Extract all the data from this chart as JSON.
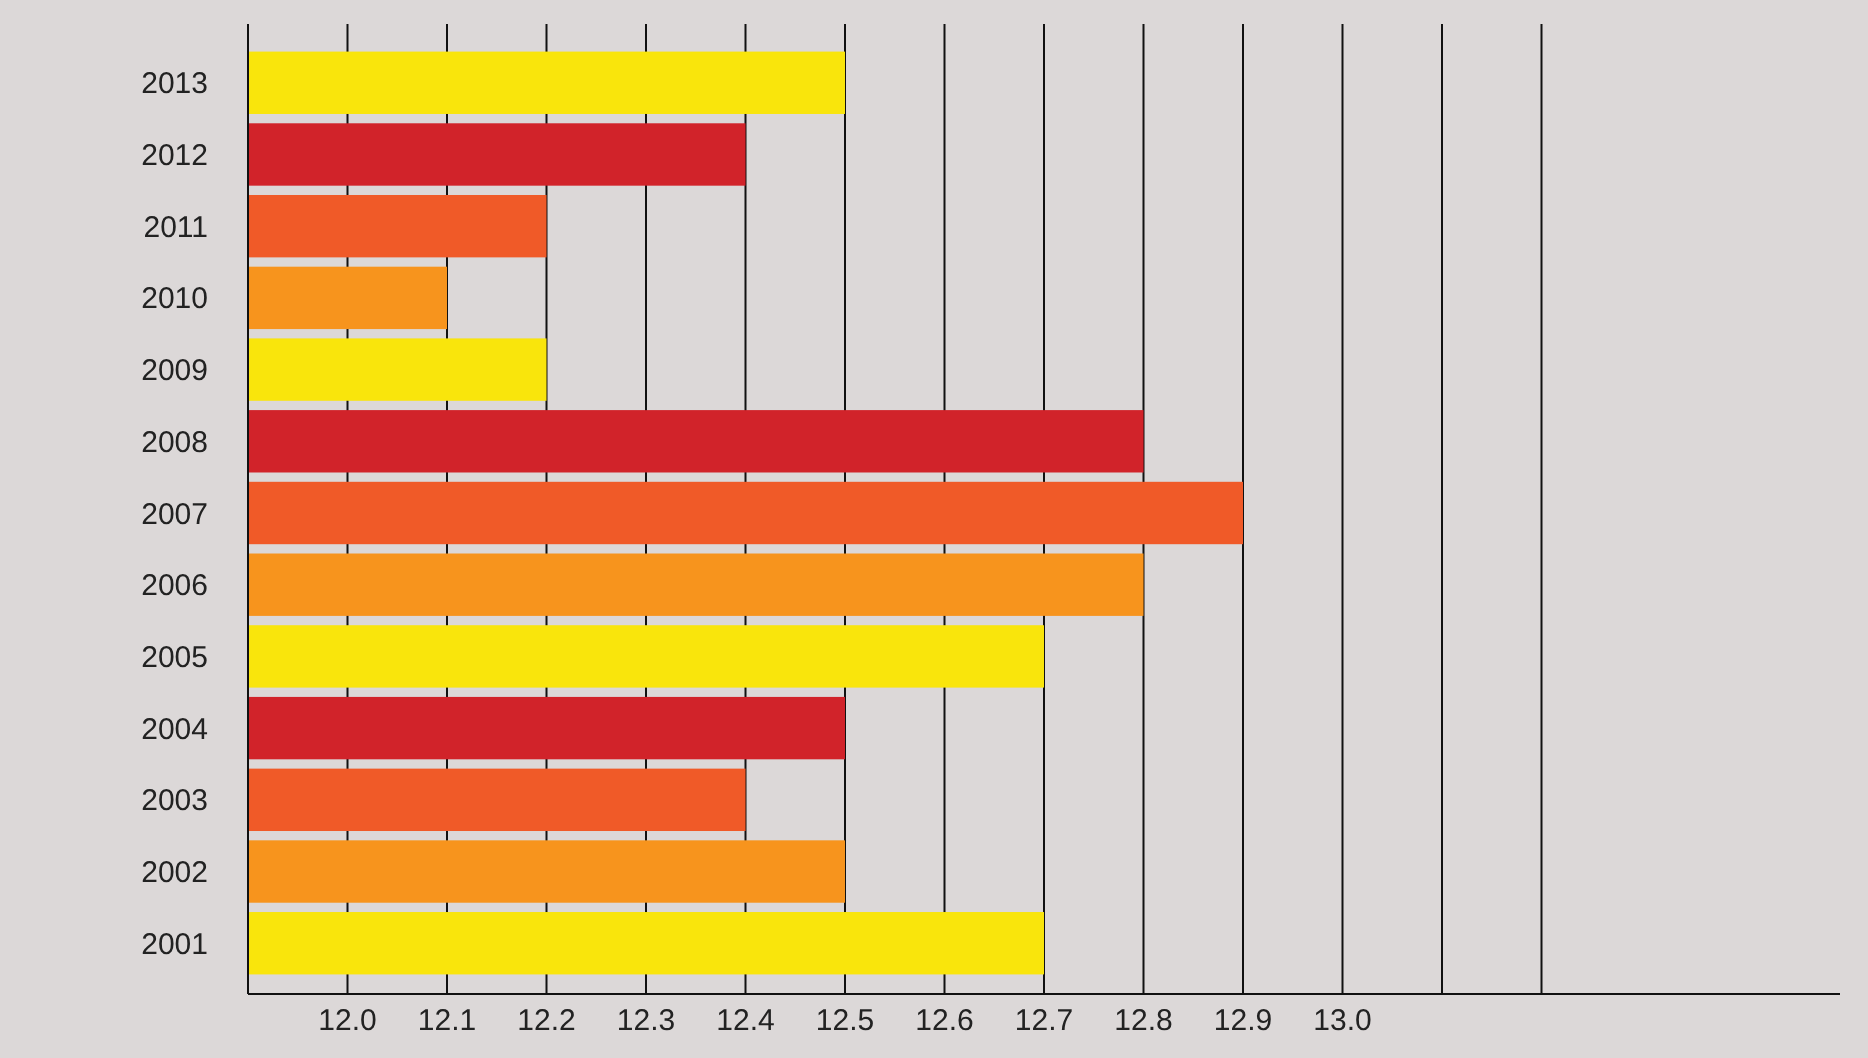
{
  "chart_data": {
    "type": "bar",
    "orientation": "horizontal",
    "categories": [
      "2013",
      "2012",
      "2011",
      "2010",
      "2009",
      "2008",
      "2007",
      "2006",
      "2005",
      "2004",
      "2003",
      "2002",
      "2001"
    ],
    "values": [
      12.5,
      12.4,
      12.2,
      12.1,
      12.2,
      12.8,
      12.9,
      12.8,
      12.7,
      12.5,
      12.4,
      12.5,
      12.7
    ],
    "colors": [
      "#f9e50c",
      "#d1232a",
      "#f05a28",
      "#f7941d",
      "#f9e50c",
      "#d1232a",
      "#f05a28",
      "#f7941d",
      "#f9e50c",
      "#d1232a",
      "#f05a28",
      "#f7941d",
      "#f9e50c"
    ],
    "xlim": [
      11.9,
      13.5
    ],
    "xticks": [
      {
        "value": 12,
        "label": "12.0"
      },
      12.1,
      12.2,
      12.3,
      12.4,
      12.5,
      12.6,
      12.7,
      12.8,
      12.9,
      {
        "value": 13,
        "label": "13.0"
      },
      {
        "value": 13.1,
        "label": null
      },
      {
        "value": 13.2,
        "label": null
      }
    ],
    "grid": "x"
  }
}
